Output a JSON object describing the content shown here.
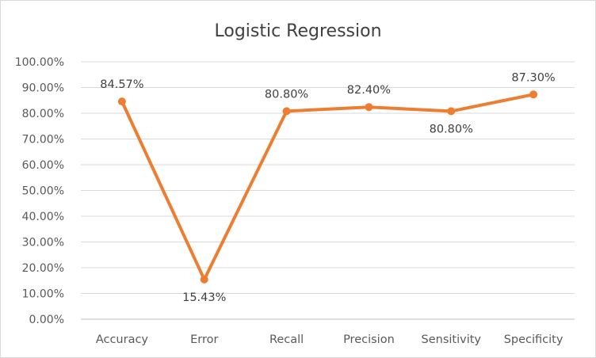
{
  "chart_data": {
    "type": "line",
    "title": "Logistic Regression",
    "categories": [
      "Accuracy",
      "Error",
      "Recall",
      "Precision",
      "Sensitivity",
      "Specificity"
    ],
    "series": [
      {
        "values": [
          84.57,
          15.43,
          80.8,
          82.4,
          80.8,
          87.3
        ],
        "labels": [
          "84.57%",
          "15.43%",
          "80.80%",
          "82.40%",
          "80.80%",
          "87.30%"
        ],
        "color": "#ED7D31"
      }
    ],
    "ylim": [
      0,
      100
    ],
    "yticks": [
      "0.00%",
      "10.00%",
      "20.00%",
      "30.00%",
      "40.00%",
      "50.00%",
      "60.00%",
      "70.00%",
      "80.00%",
      "90.00%",
      "100.00%"
    ],
    "grid": true,
    "legend": "none"
  }
}
